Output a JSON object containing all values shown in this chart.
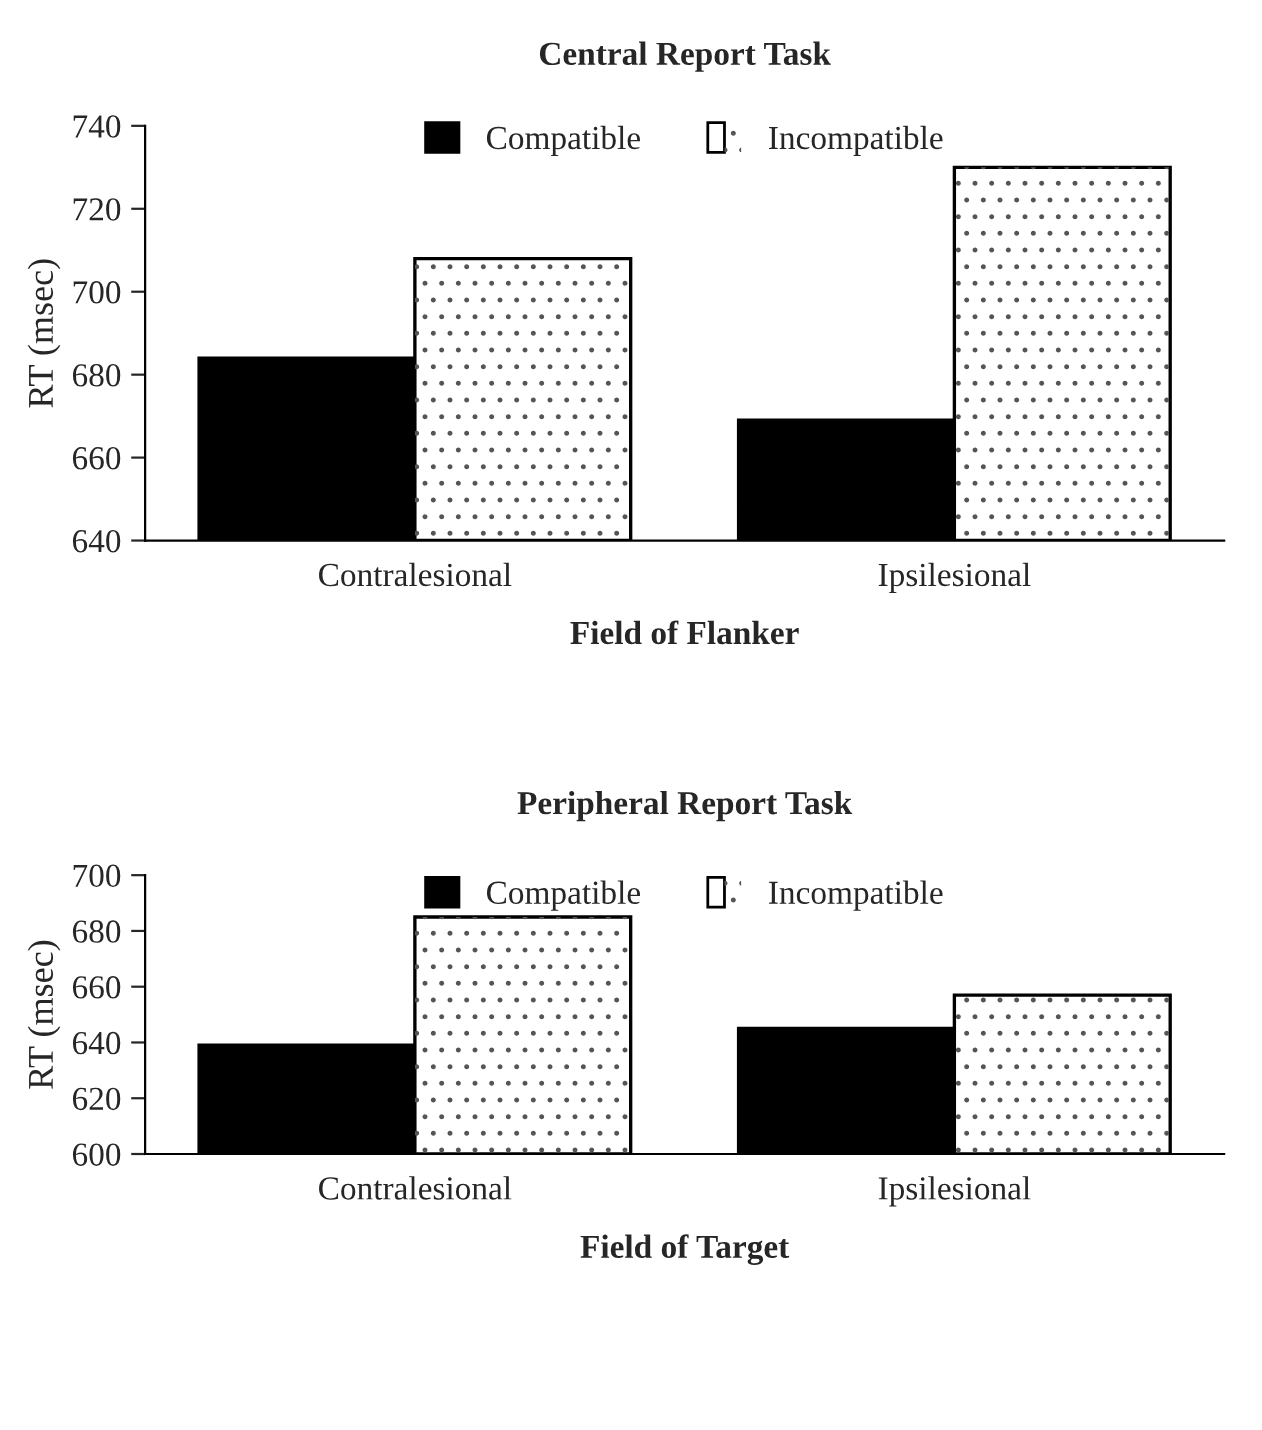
{
  "chart_data": [
    {
      "type": "bar",
      "title": "Central Report Task",
      "xlabel": "Field of Flanker",
      "ylabel": "RT (msec)",
      "categories": [
        "Contralesional",
        "Ipsilesional"
      ],
      "series": [
        {
          "name": "Compatible",
          "color": "#000000",
          "values": [
            684,
            669
          ]
        },
        {
          "name": "Incompatible",
          "color": "#ffffff",
          "values": [
            708,
            730
          ]
        }
      ],
      "ylim": [
        640,
        740
      ],
      "yticks": [
        640,
        660,
        680,
        700,
        720,
        740
      ],
      "legend": "top",
      "grid": false
    },
    {
      "type": "bar",
      "title": "Peripheral Report Task",
      "xlabel": "Field of Target",
      "ylabel": "RT (msec)",
      "categories": [
        "Contralesional",
        "Ipsilesional"
      ],
      "series": [
        {
          "name": "Compatible",
          "color": "#000000",
          "values": [
            639,
            645
          ]
        },
        {
          "name": "Incompatible",
          "color": "#ffffff",
          "values": [
            685,
            657
          ]
        }
      ],
      "ylim": [
        600,
        700
      ],
      "yticks": [
        600,
        620,
        640,
        660,
        680,
        700
      ],
      "legend": "top",
      "grid": false
    }
  ]
}
